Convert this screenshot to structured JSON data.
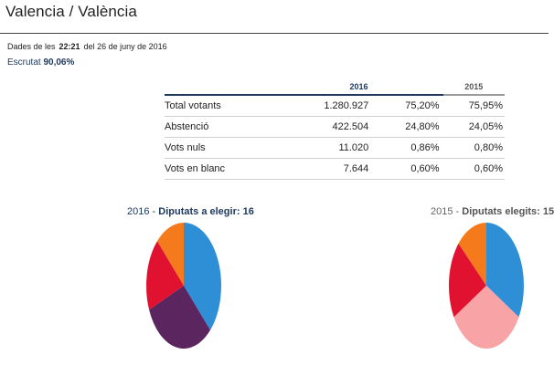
{
  "header": {
    "title": "Valencia / València",
    "update_prefix": "Dades de les",
    "update_time": "22:21",
    "update_suffix": "del 26 de juny de 2016",
    "scrutiny_label": "Escrutat",
    "scrutiny_value": "90,06%"
  },
  "table": {
    "col_2016": "2016",
    "col_2015": "2015",
    "rows": [
      {
        "label": "Total votants",
        "value_2016": "1.280.927",
        "pct_2016": "75,20%",
        "pct_2015": "75,95%"
      },
      {
        "label": "Abstenció",
        "value_2016": "422.504",
        "pct_2016": "24,80%",
        "pct_2015": "24,05%"
      },
      {
        "label": "Vots nuls",
        "value_2016": "11.020",
        "pct_2016": "0,86%",
        "pct_2015": "0,80%"
      },
      {
        "label": "Vots en blanc",
        "value_2016": "7.644",
        "pct_2016": "0,60%",
        "pct_2015": "0,60%"
      }
    ]
  },
  "pie_2016": {
    "year": "2016",
    "separator": " - ",
    "label": "Diputats a elegir:",
    "total": "16",
    "slices": [
      {
        "seats": 6,
        "color": "#2f8fd6"
      },
      {
        "seats": 5,
        "color": "#5b2660"
      },
      {
        "seats": 3,
        "color": "#e0122f"
      },
      {
        "seats": 2,
        "color": "#f57a1c"
      }
    ]
  },
  "pie_2015": {
    "year": "2015",
    "separator": " - ",
    "label": "Diputats elegits:",
    "total": "15",
    "slices": [
      {
        "seats": 5,
        "color": "#2f8fd6"
      },
      {
        "seats": 5,
        "color": "#f8a3a6"
      },
      {
        "seats": 3,
        "color": "#e0122f"
      },
      {
        "seats": 2,
        "color": "#f57a1c"
      }
    ]
  }
}
